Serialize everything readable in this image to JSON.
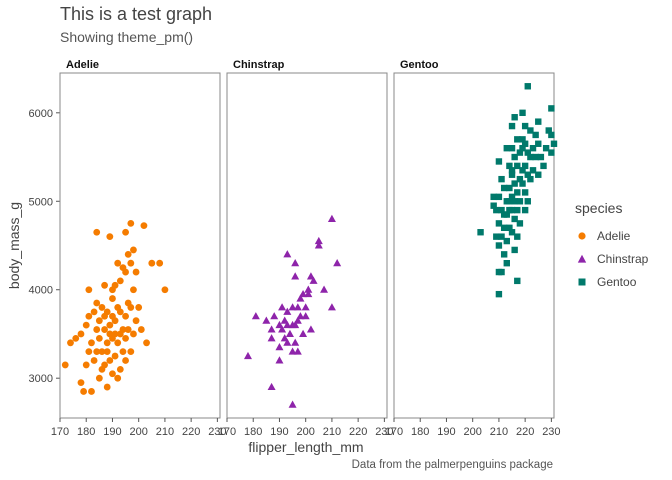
{
  "title": "This is a test graph",
  "subtitle": "Showing theme_pm()",
  "caption": "Data from the palmerpenguins package",
  "colors": {
    "Adelie": "#F57C00",
    "Chinstrap": "#8E24AA",
    "Gentoo": "#00796B"
  },
  "chart_data": {
    "type": "scatter",
    "facet_by": "species",
    "xlabel": "flipper_length_mm",
    "ylabel": "body_mass_g",
    "xlim": [
      170,
      231
    ],
    "ylim": [
      2550,
      6450
    ],
    "xticks": [
      170,
      180,
      190,
      200,
      210,
      220,
      230
    ],
    "yticks": [
      3000,
      4000,
      5000,
      6000
    ],
    "grid": false,
    "legend": {
      "title": "species",
      "position": "right",
      "entries": [
        "Adelie",
        "Chinstrap",
        "Gentoo"
      ]
    },
    "series": [
      {
        "name": "Adelie",
        "shape": "circle",
        "points": [
          [
            172,
            3150
          ],
          [
            174,
            3400
          ],
          [
            176,
            3450
          ],
          [
            178,
            2950
          ],
          [
            178,
            3500
          ],
          [
            179,
            2850
          ],
          [
            180,
            3600
          ],
          [
            180,
            3150
          ],
          [
            181,
            3300
          ],
          [
            181,
            3700
          ],
          [
            181,
            4000
          ],
          [
            182,
            3400
          ],
          [
            182,
            2850
          ],
          [
            183,
            3200
          ],
          [
            183,
            3750
          ],
          [
            184,
            3300
          ],
          [
            184,
            3550
          ],
          [
            184,
            3850
          ],
          [
            184,
            4650
          ],
          [
            185,
            3650
          ],
          [
            185,
            3000
          ],
          [
            185,
            3450
          ],
          [
            186,
            3300
          ],
          [
            186,
            3800
          ],
          [
            186,
            3100
          ],
          [
            187,
            3150
          ],
          [
            187,
            3550
          ],
          [
            187,
            3700
          ],
          [
            187,
            4050
          ],
          [
            188,
            3400
          ],
          [
            188,
            3300
          ],
          [
            188,
            2900
          ],
          [
            188,
            3750
          ],
          [
            189,
            3200
          ],
          [
            189,
            3500
          ],
          [
            189,
            3600
          ],
          [
            189,
            4600
          ],
          [
            190,
            3050
          ],
          [
            190,
            3450
          ],
          [
            190,
            3700
          ],
          [
            190,
            3900
          ],
          [
            190,
            4000
          ],
          [
            191,
            3250
          ],
          [
            191,
            3500
          ],
          [
            191,
            3650
          ],
          [
            191,
            4050
          ],
          [
            192,
            3000
          ],
          [
            192,
            3400
          ],
          [
            192,
            3800
          ],
          [
            192,
            4300
          ],
          [
            193,
            3100
          ],
          [
            193,
            3500
          ],
          [
            193,
            3750
          ],
          [
            193,
            4100
          ],
          [
            194,
            3300
          ],
          [
            194,
            3550
          ],
          [
            194,
            4250
          ],
          [
            195,
            3200
          ],
          [
            195,
            3450
          ],
          [
            195,
            3700
          ],
          [
            195,
            4200
          ],
          [
            195,
            4650
          ],
          [
            196,
            3550
          ],
          [
            196,
            3850
          ],
          [
            196,
            4400
          ],
          [
            197,
            3300
          ],
          [
            197,
            3800
          ],
          [
            197,
            4300
          ],
          [
            197,
            4750
          ],
          [
            198,
            3500
          ],
          [
            198,
            4000
          ],
          [
            198,
            4450
          ],
          [
            199,
            3650
          ],
          [
            199,
            4200
          ],
          [
            200,
            3800
          ],
          [
            201,
            3550
          ],
          [
            202,
            4725
          ],
          [
            203,
            3400
          ],
          [
            205,
            4300
          ],
          [
            208,
            4300
          ],
          [
            210,
            4000
          ]
        ]
      },
      {
        "name": "Chinstrap",
        "shape": "triangle",
        "points": [
          [
            178,
            3250
          ],
          [
            181,
            3700
          ],
          [
            185,
            3650
          ],
          [
            187,
            3550
          ],
          [
            187,
            2900
          ],
          [
            187,
            3450
          ],
          [
            188,
            3700
          ],
          [
            190,
            3600
          ],
          [
            190,
            3200
          ],
          [
            190,
            3350
          ],
          [
            191,
            3550
          ],
          [
            191,
            3800
          ],
          [
            192,
            3450
          ],
          [
            192,
            3650
          ],
          [
            193,
            3400
          ],
          [
            193,
            3600
          ],
          [
            193,
            3750
          ],
          [
            194,
            3500
          ],
          [
            195,
            3600
          ],
          [
            195,
            3300
          ],
          [
            195,
            3800
          ],
          [
            196,
            3400
          ],
          [
            196,
            3600
          ],
          [
            196,
            4150
          ],
          [
            197,
            3300
          ],
          [
            197,
            3800
          ],
          [
            197,
            3650
          ],
          [
            198,
            3700
          ],
          [
            198,
            3900
          ],
          [
            199,
            3950
          ],
          [
            199,
            3500
          ],
          [
            200,
            3700
          ],
          [
            200,
            3800
          ],
          [
            201,
            4000
          ],
          [
            201,
            3950
          ],
          [
            202,
            3550
          ],
          [
            202,
            4150
          ],
          [
            203,
            4100
          ],
          [
            205,
            4500
          ],
          [
            205,
            4550
          ],
          [
            210,
            4800
          ],
          [
            212,
            4300
          ],
          [
            210,
            3800
          ],
          [
            207,
            4000
          ],
          [
            193,
            4400
          ],
          [
            196,
            4300
          ],
          [
            195,
            2700
          ]
        ]
      },
      {
        "name": "Gentoo",
        "shape": "square",
        "points": [
          [
            203,
            4650
          ],
          [
            208,
            5050
          ],
          [
            208,
            4950
          ],
          [
            209,
            4600
          ],
          [
            209,
            4900
          ],
          [
            210,
            3950
          ],
          [
            210,
            4500
          ],
          [
            210,
            4750
          ],
          [
            210,
            5050
          ],
          [
            210,
            5450
          ],
          [
            211,
            4200
          ],
          [
            211,
            4600
          ],
          [
            211,
            4900
          ],
          [
            211,
            5250
          ],
          [
            212,
            4400
          ],
          [
            212,
            4850
          ],
          [
            212,
            5150
          ],
          [
            213,
            4300
          ],
          [
            213,
            4550
          ],
          [
            213,
            4850
          ],
          [
            213,
            5000
          ],
          [
            213,
            5600
          ],
          [
            214,
            4700
          ],
          [
            214,
            4900
          ],
          [
            214,
            5000
          ],
          [
            214,
            5400
          ],
          [
            215,
            4650
          ],
          [
            215,
            4900
          ],
          [
            215,
            5050
          ],
          [
            215,
            5350
          ],
          [
            215,
            5600
          ],
          [
            215,
            5850
          ],
          [
            216,
            4450
          ],
          [
            216,
            4800
          ],
          [
            216,
            5000
          ],
          [
            216,
            5200
          ],
          [
            216,
            5500
          ],
          [
            216,
            5950
          ],
          [
            217,
            4100
          ],
          [
            217,
            4600
          ],
          [
            217,
            4900
          ],
          [
            217,
            5100
          ],
          [
            217,
            5400
          ],
          [
            217,
            5700
          ],
          [
            218,
            4750
          ],
          [
            218,
            5000
          ],
          [
            218,
            5250
          ],
          [
            218,
            5550
          ],
          [
            219,
            5200
          ],
          [
            219,
            5350
          ],
          [
            219,
            5600
          ],
          [
            219,
            5700
          ],
          [
            219,
            6000
          ],
          [
            220,
            4900
          ],
          [
            220,
            5100
          ],
          [
            220,
            5400
          ],
          [
            220,
            5650
          ],
          [
            220,
            5850
          ],
          [
            221,
            5000
          ],
          [
            221,
            5300
          ],
          [
            221,
            5550
          ],
          [
            221,
            6300
          ],
          [
            222,
            5250
          ],
          [
            222,
            5500
          ],
          [
            222,
            5800
          ],
          [
            223,
            5350
          ],
          [
            223,
            5600
          ],
          [
            224,
            5500
          ],
          [
            224,
            5750
          ],
          [
            225,
            5300
          ],
          [
            225,
            5650
          ],
          [
            225,
            5900
          ],
          [
            226,
            5500
          ],
          [
            227,
            5400
          ],
          [
            228,
            5600
          ],
          [
            229,
            5800
          ],
          [
            230,
            5550
          ],
          [
            230,
            5750
          ],
          [
            230,
            6050
          ],
          [
            231,
            5650
          ],
          [
            215,
            5300
          ],
          [
            210,
            4200
          ],
          [
            212,
            4700
          ],
          [
            214,
            5150
          ]
        ]
      }
    ]
  }
}
